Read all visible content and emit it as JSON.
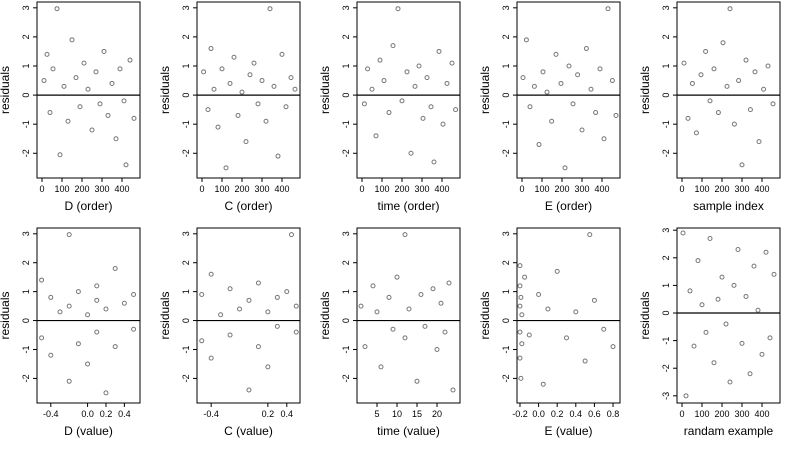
{
  "chart_data": [
    {
      "type": "scatter",
      "xlabel": "D (order)",
      "ylabel": "residuals",
      "xlim": [
        -25,
        490
      ],
      "ylim": [
        -2.85,
        3.2
      ],
      "xticks": [
        0,
        100,
        200,
        300,
        400
      ],
      "yticks": [
        -2,
        -1,
        0,
        1,
        2,
        3
      ],
      "hline": 0,
      "color": "#555555",
      "x": [
        10,
        25,
        40,
        55,
        75,
        90,
        110,
        130,
        150,
        170,
        190,
        210,
        230,
        250,
        270,
        290,
        310,
        330,
        350,
        370,
        390,
        410,
        420,
        440,
        460
      ],
      "y": [
        0.5,
        1.4,
        -0.6,
        0.9,
        2.97,
        -2.05,
        0.3,
        -0.9,
        1.9,
        0.6,
        -0.4,
        1.1,
        0.2,
        -1.2,
        0.8,
        -0.3,
        1.5,
        -0.7,
        0.4,
        -1.5,
        0.9,
        -0.2,
        -2.4,
        1.2,
        -0.8
      ]
    },
    {
      "type": "scatter",
      "xlabel": "C (order)",
      "ylabel": "residuals",
      "xlim": [
        -25,
        490
      ],
      "ylim": [
        -2.85,
        3.2
      ],
      "xticks": [
        0,
        100,
        200,
        300,
        400
      ],
      "yticks": [
        -2,
        -1,
        0,
        1,
        2,
        3
      ],
      "hline": 0,
      "color": "#555555",
      "x": [
        8,
        30,
        45,
        60,
        80,
        100,
        120,
        140,
        160,
        180,
        200,
        220,
        240,
        260,
        280,
        300,
        320,
        340,
        360,
        380,
        400,
        420,
        445,
        465
      ],
      "y": [
        0.8,
        -0.5,
        1.6,
        0.2,
        -1.1,
        0.9,
        -2.5,
        0.4,
        1.3,
        -0.7,
        0.1,
        -1.6,
        0.7,
        1.1,
        -0.3,
        0.5,
        -0.9,
        2.97,
        0.3,
        -2.1,
        1.4,
        -0.4,
        0.6,
        0.2
      ]
    },
    {
      "type": "scatter",
      "xlabel": "time (order)",
      "ylabel": "residuals",
      "xlim": [
        -25,
        490
      ],
      "ylim": [
        -2.85,
        3.2
      ],
      "xticks": [
        0,
        100,
        200,
        300,
        400
      ],
      "yticks": [
        -2,
        -1,
        0,
        1,
        2,
        3
      ],
      "hline": 0,
      "color": "#555555",
      "x": [
        12,
        28,
        50,
        70,
        90,
        110,
        135,
        155,
        180,
        200,
        225,
        245,
        265,
        285,
        305,
        325,
        345,
        360,
        385,
        405,
        425,
        450,
        468
      ],
      "y": [
        -0.3,
        0.9,
        0.2,
        -1.4,
        1.2,
        0.5,
        -0.6,
        1.7,
        2.97,
        -0.2,
        0.8,
        -2.0,
        0.3,
        1.0,
        -0.8,
        0.6,
        -0.4,
        -2.3,
        1.5,
        -1.0,
        0.4,
        1.1,
        -0.5
      ]
    },
    {
      "type": "scatter",
      "xlabel": "E (order)",
      "ylabel": "residuals",
      "xlim": [
        -25,
        490
      ],
      "ylim": [
        -2.85,
        3.2
      ],
      "xticks": [
        0,
        100,
        200,
        300,
        400
      ],
      "yticks": [
        -2,
        -1,
        0,
        1,
        2,
        3
      ],
      "hline": 0,
      "color": "#555555",
      "x": [
        5,
        22,
        40,
        62,
        85,
        105,
        125,
        148,
        170,
        195,
        215,
        235,
        255,
        278,
        300,
        322,
        345,
        368,
        390,
        410,
        430,
        452,
        470
      ],
      "y": [
        0.6,
        1.9,
        -0.4,
        0.3,
        -1.7,
        0.8,
        0.1,
        -0.9,
        1.4,
        0.4,
        -2.5,
        1.0,
        -0.3,
        0.7,
        -1.2,
        1.6,
        0.2,
        -0.6,
        0.9,
        -1.5,
        2.97,
        0.5,
        -0.7
      ]
    },
    {
      "type": "scatter",
      "xlabel": "sample index",
      "ylabel": "residuals",
      "xlim": [
        -25,
        490
      ],
      "ylim": [
        -2.85,
        3.2
      ],
      "xticks": [
        0,
        100,
        200,
        300,
        400
      ],
      "yticks": [
        -2,
        -1,
        0,
        1,
        2,
        3
      ],
      "hline": 0,
      "color": "#555555",
      "x": [
        10,
        30,
        52,
        72,
        95,
        118,
        140,
        160,
        182,
        205,
        225,
        240,
        262,
        283,
        300,
        320,
        342,
        365,
        385,
        408,
        430,
        455
      ],
      "y": [
        1.1,
        -0.8,
        0.4,
        -1.3,
        0.7,
        1.5,
        -0.2,
        0.9,
        -0.6,
        1.8,
        0.3,
        2.97,
        -1.0,
        0.5,
        -2.4,
        1.2,
        -0.5,
        0.8,
        -1.6,
        0.2,
        1.0,
        -0.3
      ]
    },
    {
      "type": "scatter",
      "xlabel": "D (value)",
      "ylabel": "residuals",
      "xlim": [
        -0.55,
        0.57
      ],
      "ylim": [
        -2.85,
        3.2
      ],
      "xticks": [
        -0.4,
        {
          "value": 0,
          "label": "0.0"
        },
        0.2,
        0.4
      ],
      "yticks": [
        -2,
        -1,
        0,
        1,
        2,
        3
      ],
      "hline": 0,
      "color": "#555555",
      "x": [
        -0.5,
        -0.5,
        -0.4,
        -0.4,
        -0.3,
        -0.2,
        -0.2,
        -0.2,
        -0.1,
        -0.1,
        0.0,
        0.0,
        0.1,
        0.1,
        0.1,
        0.2,
        0.2,
        0.3,
        0.3,
        0.4,
        0.5,
        0.5
      ],
      "y": [
        1.4,
        -0.6,
        0.8,
        -1.2,
        0.3,
        2.97,
        -2.1,
        0.5,
        -0.8,
        1.0,
        0.2,
        -1.5,
        1.2,
        -0.4,
        0.7,
        -2.5,
        0.4,
        1.8,
        -0.9,
        0.6,
        -0.3,
        0.9
      ]
    },
    {
      "type": "scatter",
      "xlabel": "C (value)",
      "ylabel": "residuals",
      "xlim": [
        -0.55,
        0.54
      ],
      "ylim": [
        -2.85,
        3.2
      ],
      "xticks": [
        -0.4,
        0.2,
        0.4
      ],
      "yticks": [
        -2,
        -1,
        0,
        1,
        2,
        3
      ],
      "hline": 0,
      "color": "#555555",
      "x": [
        -0.5,
        -0.5,
        -0.4,
        -0.4,
        -0.3,
        -0.2,
        -0.2,
        -0.1,
        0.0,
        0.0,
        0.1,
        0.1,
        0.2,
        0.2,
        0.3,
        0.3,
        0.4,
        0.45,
        0.5,
        0.5
      ],
      "y": [
        0.9,
        -0.7,
        1.6,
        -1.3,
        0.2,
        -0.5,
        1.1,
        0.4,
        -2.4,
        0.7,
        -0.9,
        1.3,
        0.3,
        -1.6,
        0.8,
        -0.2,
        1.0,
        2.97,
        -0.4,
        0.5
      ]
    },
    {
      "type": "scatter",
      "xlabel": "time (value)",
      "ylabel": "residuals",
      "xlim": [
        0,
        25.75
      ],
      "ylim": [
        -2.85,
        3.2
      ],
      "xticks": [
        5,
        10,
        15,
        20
      ],
      "yticks": [
        -2,
        -1,
        0,
        1,
        2,
        3
      ],
      "hline": 0,
      "color": "#555555",
      "x": [
        1,
        2,
        4,
        5,
        6,
        8,
        9,
        10,
        12,
        12,
        13,
        15,
        16,
        17,
        19,
        20,
        21,
        22,
        23,
        24
      ],
      "y": [
        0.5,
        -0.9,
        1.2,
        0.3,
        -1.6,
        0.8,
        -0.3,
        1.5,
        2.97,
        -0.6,
        0.4,
        -2.1,
        0.9,
        -0.2,
        1.1,
        -1.0,
        0.6,
        -0.4,
        1.3,
        -2.4
      ]
    },
    {
      "type": "scatter",
      "xlabel": "E (value)",
      "ylabel": "residuals",
      "xlim": [
        -0.232,
        0.875
      ],
      "ylim": [
        -2.85,
        3.2
      ],
      "xticks": [
        -0.2,
        {
          "value": 0,
          "label": "0.0"
        },
        0.2,
        0.4,
        0.6,
        0.8
      ],
      "yticks": [
        -2,
        -1,
        0,
        1,
        2,
        3
      ],
      "hline": 0,
      "color": "#555555",
      "x": [
        -0.2,
        -0.2,
        -0.2,
        -0.2,
        -0.2,
        -0.19,
        -0.19,
        -0.18,
        -0.18,
        -0.15,
        -0.1,
        0.0,
        0.05,
        0.1,
        0.2,
        0.3,
        0.4,
        0.5,
        0.55,
        0.6,
        0.7,
        0.8
      ],
      "y": [
        1.9,
        1.2,
        0.5,
        -0.4,
        -1.3,
        0.8,
        -2.0,
        0.2,
        -0.8,
        1.5,
        -0.5,
        0.9,
        -2.2,
        0.4,
        1.7,
        -0.6,
        0.3,
        -1.4,
        2.97,
        0.7,
        -0.3,
        -0.9
      ]
    },
    {
      "type": "scatter",
      "xlabel": "randam example",
      "ylabel": "residuals",
      "xlim": [
        -25,
        490
      ],
      "ylim": [
        -3.26,
        3.08
      ],
      "xticks": [
        0,
        100,
        200,
        300,
        400
      ],
      "yticks": [
        -3,
        -2,
        -1,
        0,
        1,
        2,
        3
      ],
      "hline": 0,
      "color": "#555555",
      "x": [
        5,
        20,
        40,
        60,
        80,
        100,
        120,
        140,
        160,
        180,
        200,
        220,
        240,
        260,
        280,
        300,
        320,
        340,
        360,
        380,
        400,
        420,
        440,
        460
      ],
      "y": [
        2.9,
        -3.0,
        0.8,
        -1.2,
        1.9,
        0.3,
        -0.7,
        2.7,
        -1.8,
        0.5,
        1.3,
        -0.4,
        -2.5,
        1.0,
        2.3,
        -1.1,
        0.6,
        -2.2,
        1.7,
        0.1,
        -1.5,
        2.2,
        -0.9,
        1.4
      ]
    }
  ]
}
